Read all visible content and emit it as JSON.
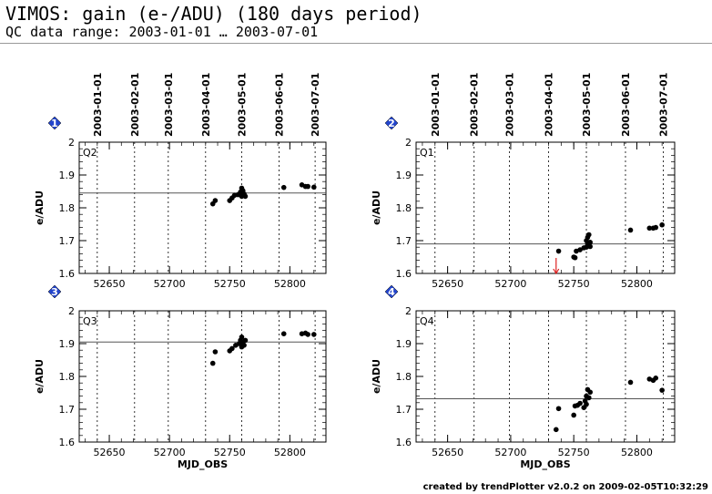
{
  "header": {
    "title": "VIMOS: gain (e-/ADU) (180 days period)",
    "subtitle": "QC data range: 2003-01-01 … 2003-07-01"
  },
  "footer": {
    "text": "created by trendPlotter v2.0.2 on 2009-02-05T10:32:29"
  },
  "colors": {
    "panel_marker": "#2244cc",
    "data": "#000000",
    "reference": "#555555",
    "outlier_arrow": "#dd2222"
  },
  "chart_data": [
    {
      "type": "scatter",
      "panel_number": "1",
      "label": "Q2",
      "ylabel": "e/ADU",
      "xlabel": "",
      "xlim": [
        52625,
        52830
      ],
      "ylim": [
        1.6,
        2.0
      ],
      "x_ticks": [
        52650,
        52700,
        52750,
        52800
      ],
      "y_ticks": [
        1.6,
        1.7,
        1.8,
        1.9,
        2
      ],
      "date_ticks": [
        {
          "label": "2003-01-01",
          "mjd": 52640
        },
        {
          "label": "2003-02-01",
          "mjd": 52671
        },
        {
          "label": "2003-03-01",
          "mjd": 52699
        },
        {
          "label": "2003-04-01",
          "mjd": 52730
        },
        {
          "label": "2003-05-01",
          "mjd": 52760
        },
        {
          "label": "2003-06-01",
          "mjd": 52791
        },
        {
          "label": "2003-07-01",
          "mjd": 52821
        }
      ],
      "reference": 1.845,
      "points": [
        [
          52736,
          1.812
        ],
        [
          52738,
          1.822
        ],
        [
          52750,
          1.822
        ],
        [
          52752,
          1.83
        ],
        [
          52754,
          1.838
        ],
        [
          52757,
          1.84
        ],
        [
          52759,
          1.848
        ],
        [
          52760,
          1.835
        ],
        [
          52760,
          1.86
        ],
        [
          52761,
          1.852
        ],
        [
          52762,
          1.842
        ],
        [
          52763,
          1.835
        ],
        [
          52795,
          1.862
        ],
        [
          52810,
          1.87
        ],
        [
          52813,
          1.865
        ],
        [
          52815,
          1.865
        ],
        [
          52820,
          1.863
        ]
      ],
      "outliers": []
    },
    {
      "type": "scatter",
      "panel_number": "2",
      "label": "Q1",
      "ylabel": "e/ADU",
      "xlabel": "",
      "xlim": [
        52625,
        52830
      ],
      "ylim": [
        1.6,
        2.0
      ],
      "x_ticks": [
        52650,
        52700,
        52750,
        52800
      ],
      "y_ticks": [
        1.6,
        1.7,
        1.8,
        1.9,
        2
      ],
      "date_ticks": [
        {
          "label": "2003-01-01",
          "mjd": 52640
        },
        {
          "label": "2003-02-01",
          "mjd": 52671
        },
        {
          "label": "2003-03-01",
          "mjd": 52699
        },
        {
          "label": "2003-04-01",
          "mjd": 52730
        },
        {
          "label": "2003-05-01",
          "mjd": 52760
        },
        {
          "label": "2003-06-01",
          "mjd": 52791
        },
        {
          "label": "2003-07-01",
          "mjd": 52821
        }
      ],
      "reference": 1.69,
      "points": [
        [
          52738,
          1.668
        ],
        [
          52750,
          1.65
        ],
        [
          52751,
          1.648
        ],
        [
          52752,
          1.668
        ],
        [
          52755,
          1.672
        ],
        [
          52758,
          1.678
        ],
        [
          52760,
          1.68
        ],
        [
          52760,
          1.7
        ],
        [
          52761,
          1.69
        ],
        [
          52761,
          1.71
        ],
        [
          52762,
          1.718
        ],
        [
          52763,
          1.695
        ],
        [
          52763,
          1.682
        ],
        [
          52795,
          1.732
        ],
        [
          52810,
          1.738
        ],
        [
          52813,
          1.738
        ],
        [
          52815,
          1.74
        ],
        [
          52820,
          1.748
        ]
      ],
      "outliers": [
        {
          "x": 52736,
          "y": 1.6
        }
      ]
    },
    {
      "type": "scatter",
      "panel_number": "3",
      "label": "Q3",
      "ylabel": "e/ADU",
      "xlabel": "MJD_OBS",
      "xlim": [
        52625,
        52830
      ],
      "ylim": [
        1.6,
        2.0
      ],
      "x_ticks": [
        52650,
        52700,
        52750,
        52800
      ],
      "y_ticks": [
        1.6,
        1.7,
        1.8,
        1.9,
        2
      ],
      "date_ticks": [],
      "reference": 1.905,
      "points": [
        [
          52736,
          1.84
        ],
        [
          52738,
          1.875
        ],
        [
          52750,
          1.878
        ],
        [
          52752,
          1.885
        ],
        [
          52755,
          1.895
        ],
        [
          52758,
          1.9
        ],
        [
          52759,
          1.91
        ],
        [
          52760,
          1.89
        ],
        [
          52760,
          1.92
        ],
        [
          52761,
          1.905
        ],
        [
          52762,
          1.895
        ],
        [
          52763,
          1.91
        ],
        [
          52795,
          1.93
        ],
        [
          52810,
          1.93
        ],
        [
          52813,
          1.932
        ],
        [
          52815,
          1.928
        ],
        [
          52820,
          1.928
        ]
      ],
      "outliers": []
    },
    {
      "type": "scatter",
      "panel_number": "4",
      "label": "Q4",
      "ylabel": "e/ADU",
      "xlabel": "MJD_OBS",
      "xlim": [
        52625,
        52830
      ],
      "ylim": [
        1.6,
        2.0
      ],
      "x_ticks": [
        52650,
        52700,
        52750,
        52800
      ],
      "y_ticks": [
        1.6,
        1.7,
        1.8,
        1.9,
        2
      ],
      "date_ticks": [],
      "reference": 1.732,
      "points": [
        [
          52736,
          1.638
        ],
        [
          52738,
          1.702
        ],
        [
          52750,
          1.682
        ],
        [
          52751,
          1.71
        ],
        [
          52753,
          1.712
        ],
        [
          52755,
          1.718
        ],
        [
          52758,
          1.705
        ],
        [
          52759,
          1.725
        ],
        [
          52760,
          1.74
        ],
        [
          52760,
          1.715
        ],
        [
          52761,
          1.76
        ],
        [
          52762,
          1.735
        ],
        [
          52763,
          1.752
        ],
        [
          52795,
          1.782
        ],
        [
          52810,
          1.792
        ],
        [
          52813,
          1.788
        ],
        [
          52815,
          1.795
        ],
        [
          52820,
          1.758
        ]
      ],
      "outliers": []
    }
  ]
}
